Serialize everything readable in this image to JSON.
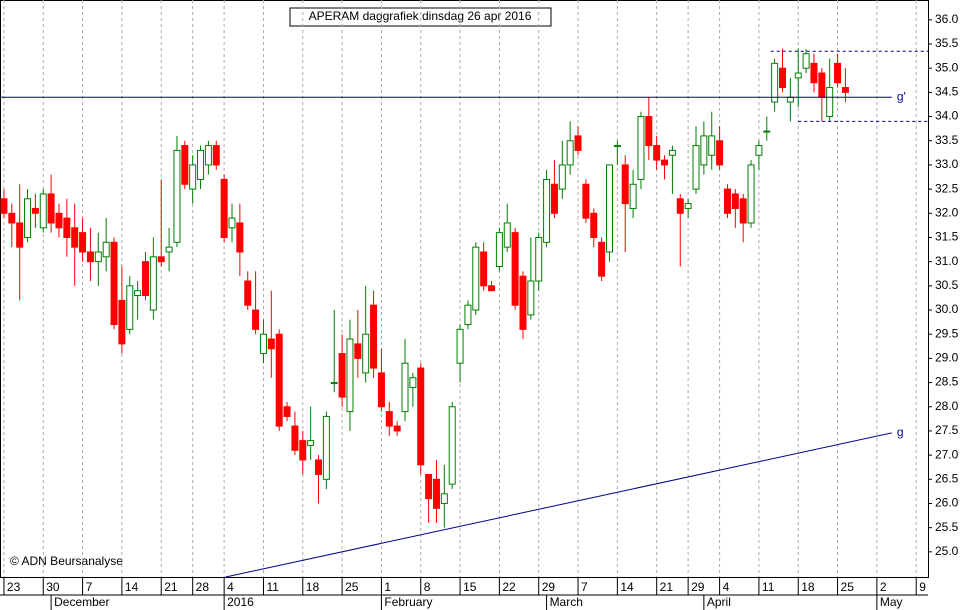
{
  "chart_data": {
    "type": "candlestick",
    "title": "APERAM daggrafiek dinsdag 26 apr 2016",
    "copyright": "© ADN Beursanalyse",
    "up_color": "#008000",
    "down_color": "#ff0000",
    "ylim": [
      24.48,
      36.41
    ],
    "xlim": [
      -0.5,
      117.5
    ],
    "yticks": [
      {
        "value": 25,
        "label": "25.0"
      },
      {
        "value": 25.5,
        "label": "25.5"
      },
      {
        "value": 26,
        "label": "26.0"
      },
      {
        "value": 26.5,
        "label": "26.5"
      },
      {
        "value": 27,
        "label": "27.0"
      },
      {
        "value": 27.5,
        "label": "27.5"
      },
      {
        "value": 28,
        "label": "28.0"
      },
      {
        "value": 28.5,
        "label": "28.5"
      },
      {
        "value": 29,
        "label": "29.0"
      },
      {
        "value": 29.5,
        "label": "29.5"
      },
      {
        "value": 30,
        "label": "30.0"
      },
      {
        "value": 30.5,
        "label": "30.5"
      },
      {
        "value": 31,
        "label": "31.0"
      },
      {
        "value": 31.5,
        "label": "31.5"
      },
      {
        "value": 32,
        "label": "32.0"
      },
      {
        "value": 32.5,
        "label": "32.5"
      },
      {
        "value": 33,
        "label": "33.0"
      },
      {
        "value": 33.5,
        "label": "33.5"
      },
      {
        "value": 34,
        "label": "34.0"
      },
      {
        "value": 34.5,
        "label": "34.5"
      },
      {
        "value": 35,
        "label": "35.0"
      },
      {
        "value": 35.5,
        "label": "35.5"
      },
      {
        "value": 36,
        "label": "36.0"
      }
    ],
    "xticks": [
      {
        "value": 0,
        "label": "23"
      },
      {
        "value": 5,
        "label": "30"
      },
      {
        "value": 10,
        "label": "7"
      },
      {
        "value": 15,
        "label": "14"
      },
      {
        "value": 20,
        "label": "21"
      },
      {
        "value": 24,
        "label": "28"
      },
      {
        "value": 28,
        "label": "4"
      },
      {
        "value": 33,
        "label": "11"
      },
      {
        "value": 38,
        "label": "18"
      },
      {
        "value": 43,
        "label": "25"
      },
      {
        "value": 48,
        "label": "1"
      },
      {
        "value": 53,
        "label": "8"
      },
      {
        "value": 58,
        "label": "15"
      },
      {
        "value": 63,
        "label": "22"
      },
      {
        "value": 68,
        "label": "29"
      },
      {
        "value": 73,
        "label": "7"
      },
      {
        "value": 78,
        "label": "14"
      },
      {
        "value": 83,
        "label": "21"
      },
      {
        "value": 87,
        "label": "29"
      },
      {
        "value": 91,
        "label": "4"
      },
      {
        "value": 96,
        "label": "11"
      },
      {
        "value": 101,
        "label": "18"
      },
      {
        "value": 106,
        "label": "25"
      },
      {
        "value": 111,
        "label": "2"
      },
      {
        "value": 116,
        "label": "9"
      }
    ],
    "months": [
      {
        "value": 6,
        "label": "December"
      },
      {
        "value": 28,
        "label": "2016"
      },
      {
        "value": 48,
        "label": "February"
      },
      {
        "value": 69,
        "label": "March"
      },
      {
        "value": 89,
        "label": "April"
      },
      {
        "value": 111,
        "label": "May"
      }
    ],
    "lines": [
      {
        "label": "g'",
        "x": [
          -0.5,
          112.9
        ],
        "y": [
          34.4,
          34.4
        ],
        "style": "solid"
      },
      {
        "label": "g",
        "x": [
          28.2,
          112.9
        ],
        "y": [
          24.48,
          27.46
        ],
        "style": "solid"
      },
      {
        "x": [
          97.5,
          117.5
        ],
        "y": [
          35.35,
          35.35
        ],
        "style": "dashed"
      },
      {
        "x": [
          101,
          117.5
        ],
        "y": [
          33.9,
          33.9
        ],
        "style": "dashed"
      }
    ],
    "ohlc": [
      [
        32.3,
        32.5,
        31.9,
        32.0
      ],
      [
        32.0,
        32.2,
        31.3,
        31.8
      ],
      [
        31.8,
        32.6,
        30.2,
        31.3
      ],
      [
        31.5,
        32.5,
        31.4,
        32.3
      ],
      [
        32.1,
        32.4,
        31.7,
        32.0
      ],
      [
        31.7,
        32.5,
        31.6,
        32.4
      ],
      [
        32.4,
        32.8,
        31.6,
        31.8
      ],
      [
        32.0,
        32.2,
        31.5,
        31.7
      ],
      [
        31.9,
        32.3,
        31.1,
        31.5
      ],
      [
        31.7,
        32.2,
        30.5,
        31.3
      ],
      [
        31.6,
        31.9,
        31.0,
        31.2
      ],
      [
        31.2,
        31.7,
        30.6,
        31.0
      ],
      [
        31.0,
        31.6,
        30.5,
        31.2
      ],
      [
        31.1,
        31.9,
        30.8,
        31.4
      ],
      [
        31.4,
        31.5,
        29.6,
        29.7
      ],
      [
        30.2,
        30.9,
        29.1,
        29.3
      ],
      [
        29.6,
        30.7,
        29.5,
        30.5
      ],
      [
        30.3,
        30.6,
        29.8,
        30.4
      ],
      [
        31.0,
        31.2,
        30.2,
        30.3
      ],
      [
        30.0,
        31.5,
        29.8,
        31.1
      ],
      [
        31.1,
        32.7,
        30.9,
        31.0
      ],
      [
        31.2,
        31.7,
        30.8,
        31.3
      ],
      [
        31.4,
        33.6,
        31.3,
        33.3
      ],
      [
        33.4,
        33.5,
        32.5,
        32.6
      ],
      [
        32.5,
        33.2,
        32.2,
        33.0
      ],
      [
        32.7,
        33.4,
        32.5,
        33.3
      ],
      [
        33.0,
        33.5,
        32.8,
        33.4
      ],
      [
        33.4,
        33.5,
        32.9,
        33.0
      ],
      [
        32.7,
        32.8,
        31.4,
        31.5
      ],
      [
        31.7,
        32.2,
        31.4,
        31.9
      ],
      [
        31.8,
        32.2,
        30.7,
        31.2
      ],
      [
        30.6,
        30.8,
        30.0,
        30.1
      ],
      [
        30.0,
        30.8,
        29.5,
        29.6
      ],
      [
        29.1,
        29.8,
        28.9,
        29.5
      ],
      [
        29.4,
        30.4,
        28.6,
        29.2
      ],
      [
        29.5,
        29.6,
        27.5,
        27.6
      ],
      [
        28.0,
        28.1,
        27.7,
        27.8
      ],
      [
        27.6,
        27.9,
        27.0,
        27.1
      ],
      [
        27.3,
        27.5,
        26.6,
        26.9
      ],
      [
        27.2,
        28.0,
        26.9,
        27.3
      ],
      [
        26.9,
        27.0,
        26.0,
        26.6
      ],
      [
        26.5,
        27.9,
        26.3,
        27.8
      ],
      [
        28.5,
        30.0,
        28.3,
        28.5
      ],
      [
        29.1,
        29.5,
        28.0,
        28.2
      ],
      [
        27.9,
        29.8,
        27.5,
        29.4
      ],
      [
        29.3,
        30.0,
        28.6,
        29.0
      ],
      [
        28.7,
        30.5,
        28.5,
        29.5
      ],
      [
        30.1,
        30.4,
        28.6,
        28.8
      ],
      [
        28.7,
        29.2,
        27.9,
        28.0
      ],
      [
        27.9,
        28.1,
        27.4,
        27.6
      ],
      [
        27.6,
        27.7,
        27.4,
        27.5
      ],
      [
        27.9,
        29.4,
        27.7,
        28.9
      ],
      [
        28.4,
        28.7,
        28.0,
        28.6
      ],
      [
        28.8,
        28.9,
        26.6,
        26.8
      ],
      [
        26.6,
        26.6,
        25.6,
        26.1
      ],
      [
        26.5,
        26.9,
        25.6,
        25.9
      ],
      [
        26.0,
        26.8,
        25.5,
        26.2
      ],
      [
        26.4,
        28.1,
        26.3,
        28.0
      ],
      [
        28.9,
        29.7,
        28.5,
        29.6
      ],
      [
        29.7,
        30.2,
        29.6,
        30.1
      ],
      [
        30.0,
        31.4,
        29.9,
        31.3
      ],
      [
        31.2,
        31.4,
        30.4,
        30.5
      ],
      [
        30.5,
        30.6,
        30.4,
        30.4
      ],
      [
        30.9,
        31.7,
        30.8,
        31.6
      ],
      [
        31.3,
        32.2,
        31.2,
        31.8
      ],
      [
        31.6,
        31.7,
        30.0,
        30.1
      ],
      [
        30.7,
        30.8,
        29.4,
        29.6
      ],
      [
        29.9,
        31.5,
        29.8,
        30.6
      ],
      [
        30.6,
        31.6,
        30.4,
        31.5
      ],
      [
        31.4,
        32.9,
        31.3,
        32.7
      ],
      [
        32.6,
        33.1,
        31.9,
        32.0
      ],
      [
        32.5,
        33.5,
        32.3,
        33.0
      ],
      [
        33.0,
        33.9,
        32.8,
        33.5
      ],
      [
        33.6,
        33.8,
        33.2,
        33.3
      ],
      [
        32.6,
        32.7,
        31.8,
        31.9
      ],
      [
        32.0,
        32.1,
        31.3,
        31.5
      ],
      [
        31.4,
        31.5,
        30.6,
        30.7
      ],
      [
        31.2,
        33.0,
        31.0,
        33.0
      ],
      [
        33.4,
        33.5,
        33.0,
        33.4
      ],
      [
        33.0,
        33.2,
        31.2,
        32.2
      ],
      [
        32.1,
        32.9,
        31.9,
        32.6
      ],
      [
        32.7,
        34.1,
        32.5,
        34.0
      ],
      [
        34.0,
        34.4,
        33.1,
        33.4
      ],
      [
        33.4,
        33.6,
        32.9,
        33.1
      ],
      [
        33.1,
        33.2,
        32.7,
        33.0
      ],
      [
        33.2,
        33.4,
        32.4,
        33.3
      ],
      [
        32.3,
        32.4,
        30.9,
        32.0
      ],
      [
        32.1,
        32.3,
        31.9,
        32.2
      ],
      [
        32.5,
        33.8,
        32.4,
        33.4
      ],
      [
        33.0,
        33.9,
        32.8,
        33.6
      ],
      [
        33.2,
        34.1,
        32.9,
        33.6
      ],
      [
        33.5,
        33.8,
        32.9,
        33.0
      ],
      [
        32.5,
        32.6,
        31.9,
        32.0
      ],
      [
        32.4,
        32.5,
        31.7,
        32.1
      ],
      [
        32.3,
        32.4,
        31.4,
        31.8
      ],
      [
        31.8,
        33.1,
        31.7,
        33.0
      ],
      [
        33.2,
        33.5,
        32.9,
        33.4
      ],
      [
        33.7,
        34.0,
        33.5,
        33.7
      ],
      [
        34.3,
        35.2,
        34.1,
        35.1
      ],
      [
        35.0,
        35.4,
        34.5,
        34.6
      ],
      [
        34.3,
        34.8,
        33.9,
        34.4
      ],
      [
        34.8,
        35.4,
        34.2,
        34.9
      ],
      [
        35.0,
        35.4,
        34.9,
        35.3
      ],
      [
        35.1,
        35.3,
        34.5,
        34.7
      ],
      [
        34.9,
        35.0,
        33.9,
        34.4
      ],
      [
        34.0,
        35.2,
        33.9,
        34.6
      ],
      [
        35.1,
        35.3,
        34.6,
        34.7
      ],
      [
        34.6,
        35.0,
        34.3,
        34.5
      ]
    ]
  }
}
